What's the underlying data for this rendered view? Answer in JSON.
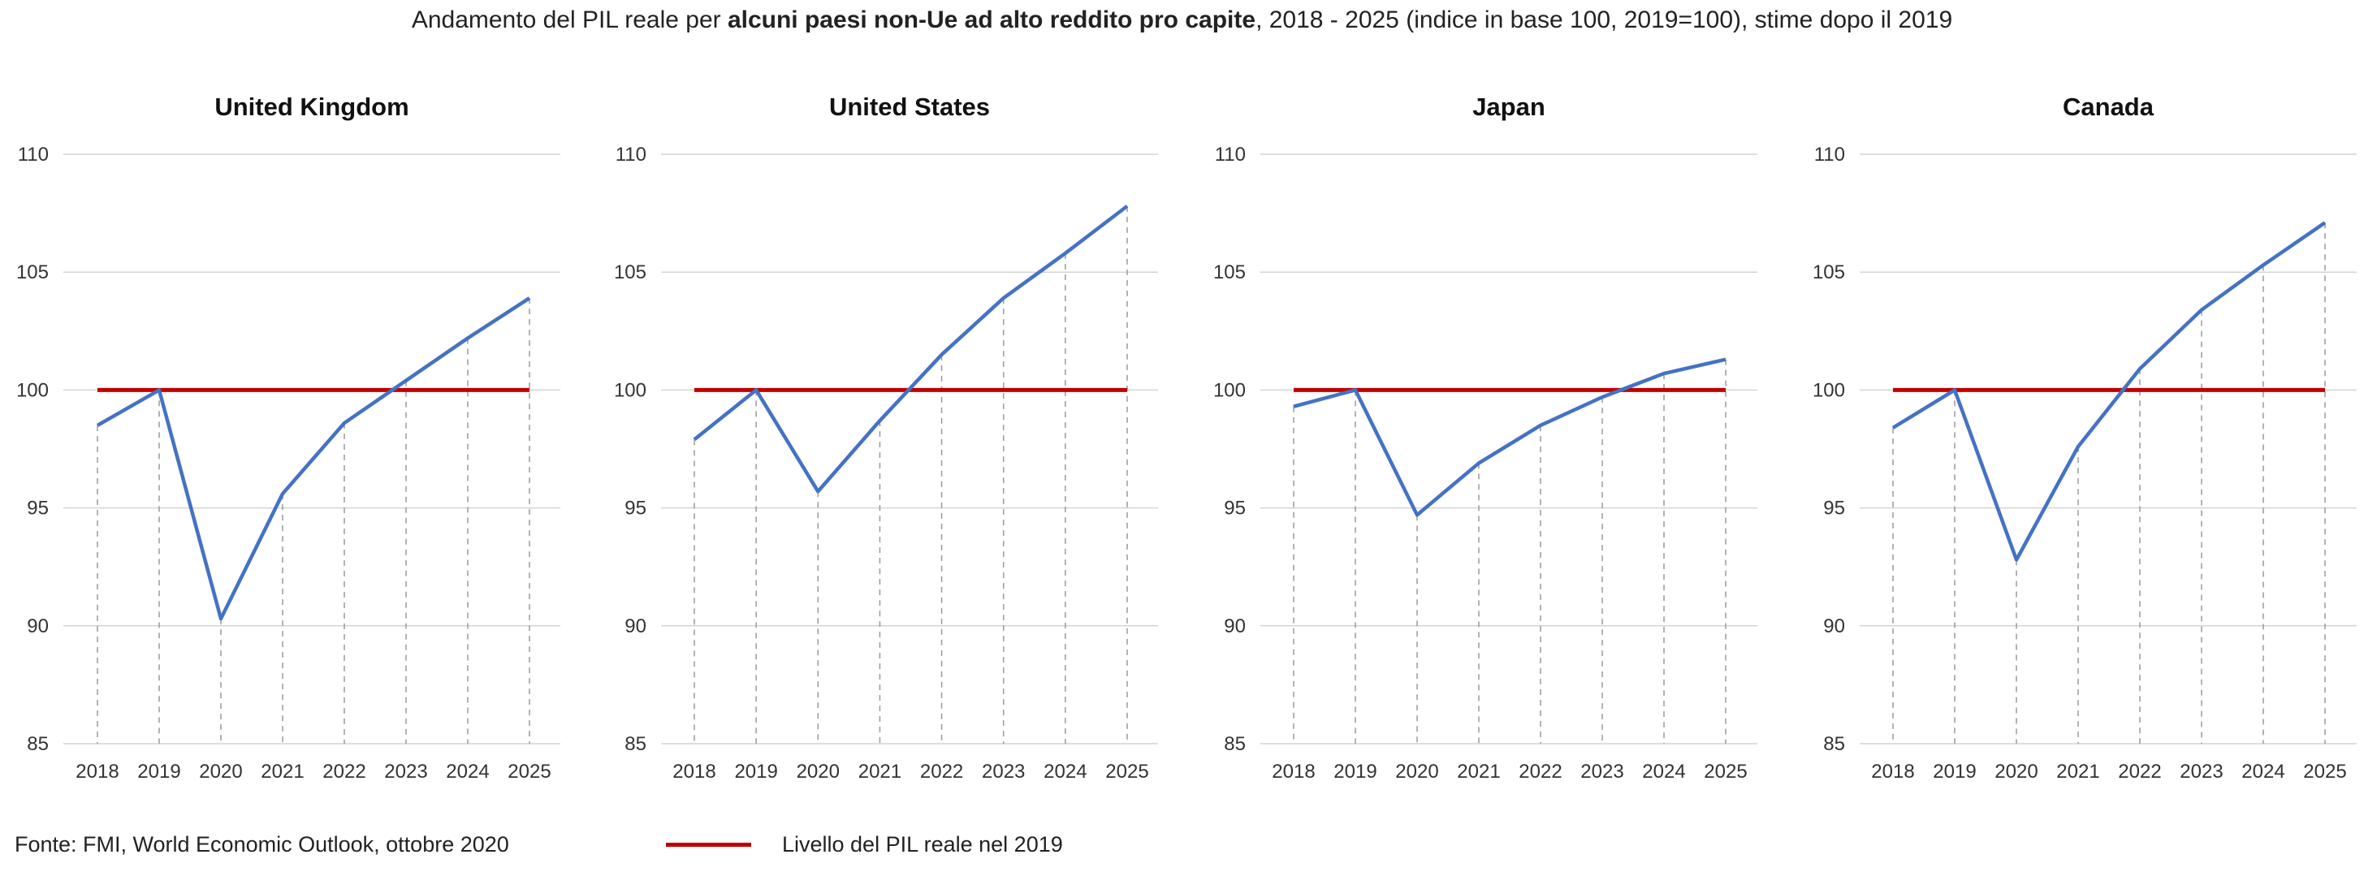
{
  "title": {
    "prefix": "Andamento del PIL reale per ",
    "bold": "alcuni paesi non-Ue ad alto reddito pro capite",
    "suffix": ", 2018 - 2025 (indice in base 100, 2019=100), stime dopo il 2019"
  },
  "source": "Fonte: FMI, World Economic Outlook, ottobre 2020",
  "legend": {
    "label": "Livello del PIL reale nel 2019",
    "color": "#c00000"
  },
  "colors": {
    "series": "#4472c4",
    "reference": "#c00000",
    "grid": "#d4d4d4"
  },
  "chart_data": [
    {
      "type": "line",
      "title": "United Kingdom",
      "x": [
        "2018",
        "2019",
        "2020",
        "2021",
        "2022",
        "2023",
        "2024",
        "2025"
      ],
      "series": [
        {
          "values": [
            98.5,
            100.0,
            90.3,
            95.6,
            98.6,
            100.4,
            102.2,
            103.9
          ]
        },
        {
          "name": "Livello del PIL reale nel 2019",
          "values": [
            100,
            100,
            100,
            100,
            100,
            100,
            100,
            100
          ]
        }
      ],
      "ylim": [
        85,
        110
      ],
      "yticks": [
        85,
        90,
        95,
        100,
        105,
        110
      ],
      "grid": true
    },
    {
      "type": "line",
      "title": "United States",
      "x": [
        "2018",
        "2019",
        "2020",
        "2021",
        "2022",
        "2023",
        "2024",
        "2025"
      ],
      "series": [
        {
          "values": [
            97.9,
            100.0,
            95.7,
            98.7,
            101.5,
            103.9,
            105.8,
            107.8
          ]
        },
        {
          "name": "Livello del PIL reale nel 2019",
          "values": [
            100,
            100,
            100,
            100,
            100,
            100,
            100,
            100
          ]
        }
      ],
      "ylim": [
        85,
        110
      ],
      "yticks": [
        85,
        90,
        95,
        100,
        105,
        110
      ],
      "grid": true
    },
    {
      "type": "line",
      "title": "Japan",
      "x": [
        "2018",
        "2019",
        "2020",
        "2021",
        "2022",
        "2023",
        "2024",
        "2025"
      ],
      "series": [
        {
          "values": [
            99.3,
            100.0,
            94.7,
            96.9,
            98.5,
            99.7,
            100.7,
            101.3
          ]
        },
        {
          "name": "Livello del PIL reale nel 2019",
          "values": [
            100,
            100,
            100,
            100,
            100,
            100,
            100,
            100
          ]
        }
      ],
      "ylim": [
        85,
        110
      ],
      "yticks": [
        85,
        90,
        95,
        100,
        105,
        110
      ],
      "grid": true
    },
    {
      "type": "line",
      "title": "Canada",
      "x": [
        "2018",
        "2019",
        "2020",
        "2021",
        "2022",
        "2023",
        "2024",
        "2025"
      ],
      "series": [
        {
          "values": [
            98.4,
            100.0,
            92.8,
            97.6,
            100.9,
            103.4,
            105.3,
            107.1
          ]
        },
        {
          "name": "Livello del PIL reale nel 2019",
          "values": [
            100,
            100,
            100,
            100,
            100,
            100,
            100,
            100
          ]
        }
      ],
      "ylim": [
        85,
        110
      ],
      "yticks": [
        85,
        90,
        95,
        100,
        105,
        110
      ],
      "grid": true
    }
  ]
}
